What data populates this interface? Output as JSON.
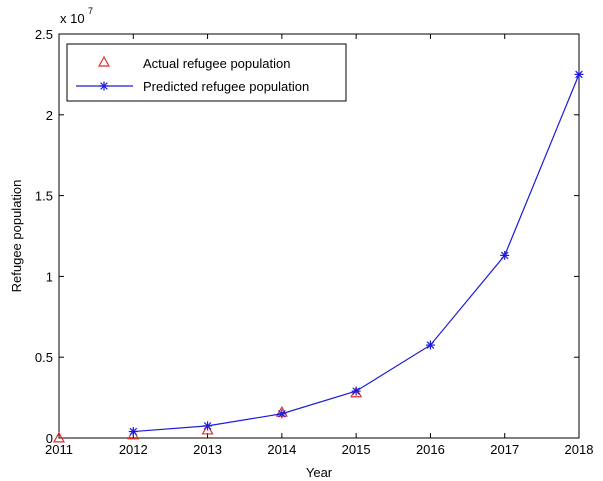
{
  "chart_data": {
    "type": "line",
    "xlabel": "Year",
    "ylabel": "Refugee population",
    "y_exponent_label": "x 10",
    "y_exponent_power": "7",
    "xlim": [
      2011,
      2018
    ],
    "ylim": [
      0,
      2.5
    ],
    "x_ticks": [
      2011,
      2012,
      2013,
      2014,
      2015,
      2016,
      2017,
      2018
    ],
    "x_tick_labels": [
      "2011",
      "2012",
      "2013",
      "2014",
      "2015",
      "2016",
      "2017",
      "2018"
    ],
    "y_ticks": [
      0,
      0.5,
      1,
      1.5,
      2,
      2.5
    ],
    "y_tick_labels": [
      "0",
      "0.5",
      "1",
      "1.5",
      "2",
      "2.5"
    ],
    "grid": false,
    "legend_position": "top-left",
    "series": [
      {
        "name": "Actual refugee population",
        "marker": "triangle",
        "line": false,
        "color": "#e0302a",
        "x": [
          2011,
          2012,
          2013,
          2014,
          2015
        ],
        "y": [
          0.001,
          0.02,
          0.05,
          0.16,
          0.28
        ]
      },
      {
        "name": "Predicted refugee population",
        "marker": "star",
        "line": true,
        "color": "#1c1cd9",
        "x": [
          2012,
          2013,
          2014,
          2015,
          2016,
          2017,
          2018
        ],
        "y": [
          0.04,
          0.075,
          0.15,
          0.29,
          0.575,
          1.13,
          2.25
        ]
      }
    ]
  }
}
